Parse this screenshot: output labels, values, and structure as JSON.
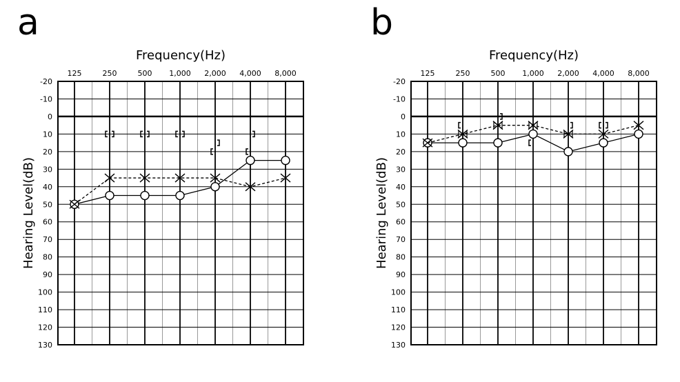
{
  "chart_data": [
    {
      "type": "line",
      "panel_label": "a",
      "title": "Frequency(Hz)",
      "xlabel": "Frequency(Hz)",
      "ylabel": "Hearing Level(dB)",
      "x_ticks": [
        "125",
        "250",
        "500",
        "1,000",
        "2,000",
        "4,000",
        "8,000"
      ],
      "y_ticks": [
        -20,
        -10,
        0,
        10,
        20,
        30,
        40,
        50,
        60,
        70,
        80,
        90,
        100,
        110,
        120,
        130
      ],
      "ylim": [
        -20,
        130
      ],
      "y_inverted": true,
      "grid": true,
      "series": [
        {
          "marker": "circle",
          "line": "solid",
          "x": [
            "125",
            "250",
            "500",
            "1,000",
            "2,000",
            "4,000",
            "8,000"
          ],
          "values": [
            50,
            45,
            45,
            45,
            40,
            25,
            25
          ]
        },
        {
          "marker": "cross",
          "line": "dashed",
          "x": [
            "125",
            "250",
            "500",
            "1,000",
            "2,000",
            "4,000",
            "8,000"
          ],
          "values": [
            50,
            35,
            35,
            35,
            35,
            40,
            35
          ]
        },
        {
          "marker": "left-bracket",
          "line": "none",
          "x": [
            "250",
            "500",
            "1,000",
            "2,000",
            "4,000"
          ],
          "values": [
            10,
            10,
            10,
            20,
            20
          ]
        },
        {
          "marker": "right-bracket",
          "line": "none",
          "x": [
            "250",
            "500",
            "1,000",
            "2,000",
            "4,000"
          ],
          "values": [
            10,
            10,
            10,
            15,
            10
          ]
        }
      ]
    },
    {
      "type": "line",
      "panel_label": "b",
      "title": "Frequency(Hz)",
      "xlabel": "Frequency(Hz)",
      "ylabel": "Hearing Level(dB)",
      "x_ticks": [
        "125",
        "250",
        "500",
        "1,000",
        "2,000",
        "4,000",
        "8,000"
      ],
      "y_ticks": [
        -20,
        -10,
        0,
        10,
        20,
        30,
        40,
        50,
        60,
        70,
        80,
        90,
        100,
        110,
        120,
        130
      ],
      "ylim": [
        -20,
        130
      ],
      "y_inverted": true,
      "grid": true,
      "series": [
        {
          "marker": "circle",
          "line": "solid",
          "x": [
            "125",
            "250",
            "500",
            "1,000",
            "2,000",
            "4,000",
            "8,000"
          ],
          "values": [
            15,
            15,
            15,
            10,
            20,
            15,
            10
          ]
        },
        {
          "marker": "cross",
          "line": "dashed",
          "x": [
            "125",
            "250",
            "500",
            "1,000",
            "2,000",
            "4,000",
            "8,000"
          ],
          "values": [
            15,
            10,
            5,
            5,
            10,
            10,
            5
          ]
        },
        {
          "marker": "bowtie",
          "line": "none",
          "x": [
            "250",
            "500",
            "1,000",
            "2,000"
          ],
          "values": [
            10,
            5,
            5,
            10
          ]
        },
        {
          "marker": "left-bracket",
          "line": "none",
          "x": [
            "250",
            "1,000",
            "4,000"
          ],
          "values": [
            5,
            15,
            5
          ]
        },
        {
          "marker": "right-bracket",
          "line": "none",
          "x": [
            "500",
            "2,000",
            "4,000"
          ],
          "values": [
            0,
            5,
            5
          ]
        }
      ]
    }
  ]
}
